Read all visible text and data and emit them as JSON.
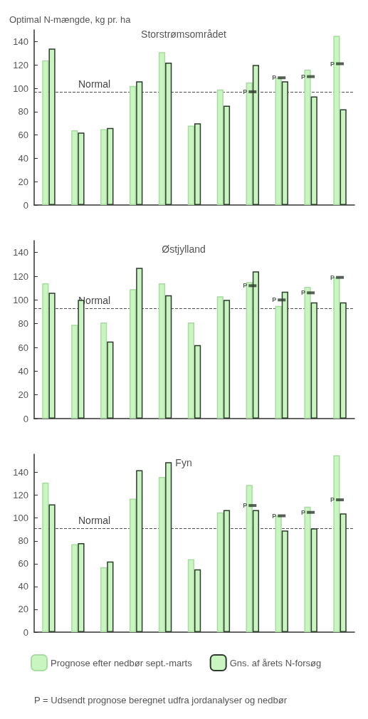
{
  "chart_data": [
    {
      "type": "bar",
      "title": "Storstrømsområdet",
      "ylabel": "Optimal N-mængde, kg pr. ha",
      "categories": [
        null,
        null,
        null,
        null,
        null,
        null,
        null,
        null,
        null,
        null,
        null
      ],
      "tick_labels": "y",
      "ylim": [
        0,
        150
      ],
      "yticks": [
        0,
        20,
        40,
        60,
        80,
        100,
        120,
        140
      ],
      "series": [
        {
          "color": "#c8f5c0",
          "values": [
            124,
            64,
            65,
            102,
            131,
            68,
            99,
            105,
            109,
            116,
            145
          ]
        },
        {
          "color": "#c8f5c0",
          "values": [
            134,
            62,
            66,
            106,
            122,
            70,
            85,
            120,
            106,
            93,
            82
          ]
        },
        {
          "name": "P",
          "type": "scatter",
          "color": "#2d3b2d",
          "values": [
            null,
            null,
            null,
            null,
            null,
            null,
            null,
            97,
            109,
            110,
            121
          ]
        }
      ],
      "ref_lines": [
        {
          "axis": "y",
          "value": 97,
          "label": "Normal",
          "line_style": "dashed"
        }
      ]
    },
    {
      "type": "bar",
      "title": "Østjylland",
      "categories": [
        null,
        null,
        null,
        null,
        null,
        null,
        null,
        null,
        null,
        null,
        null
      ],
      "tick_labels": "y",
      "ylim": [
        0,
        150
      ],
      "yticks": [
        0,
        20,
        40,
        60,
        80,
        100,
        120,
        140
      ],
      "series": [
        {
          "color": "#c8f5c0",
          "values": [
            114,
            79,
            81,
            109,
            114,
            81,
            103,
            115,
            95,
            111,
            119
          ]
        },
        {
          "color": "#c8f5c0",
          "values": [
            106,
            100,
            65,
            127,
            104,
            62,
            100,
            124,
            107,
            98,
            98
          ]
        },
        {
          "name": "P",
          "type": "scatter",
          "color": "#2d3b2d",
          "values": [
            null,
            null,
            null,
            null,
            null,
            null,
            null,
            112,
            100,
            106,
            119
          ]
        }
      ],
      "ref_lines": [
        {
          "axis": "y",
          "value": 93,
          "label": "Normal",
          "line_style": "dashed"
        }
      ]
    },
    {
      "type": "bar",
      "title": "Fyn",
      "categories": [
        null,
        null,
        null,
        null,
        null,
        null,
        null,
        null,
        null,
        null,
        null
      ],
      "tick_labels": "y",
      "ylim": [
        0,
        156
      ],
      "yticks": [
        0,
        20,
        40,
        60,
        80,
        100,
        120,
        140
      ],
      "legend": "bottom",
      "series": [
        {
          "name": "Prognose efter nedbør sept.-marts",
          "color": "#c8f5c0",
          "values": [
            131,
            77,
            57,
            117,
            136,
            64,
            105,
            129,
            102,
            110,
            155
          ]
        },
        {
          "name": "Gns. af årets N-forsøg",
          "color": "#c8f5c0",
          "values": [
            112,
            78,
            62,
            142,
            149,
            55,
            107,
            107,
            89,
            91,
            104
          ]
        },
        {
          "name": "P",
          "type": "scatter",
          "color": "#2d3b2d",
          "values": [
            null,
            null,
            null,
            null,
            null,
            null,
            null,
            111,
            102,
            105,
            116
          ]
        }
      ],
      "ref_lines": [
        {
          "axis": "y",
          "value": 91,
          "label": "Normal",
          "line_style": "dashed"
        }
      ],
      "annotations": [
        "P = Udsendt prognose beregnet udfra jordanalyser og nedbør"
      ]
    }
  ]
}
